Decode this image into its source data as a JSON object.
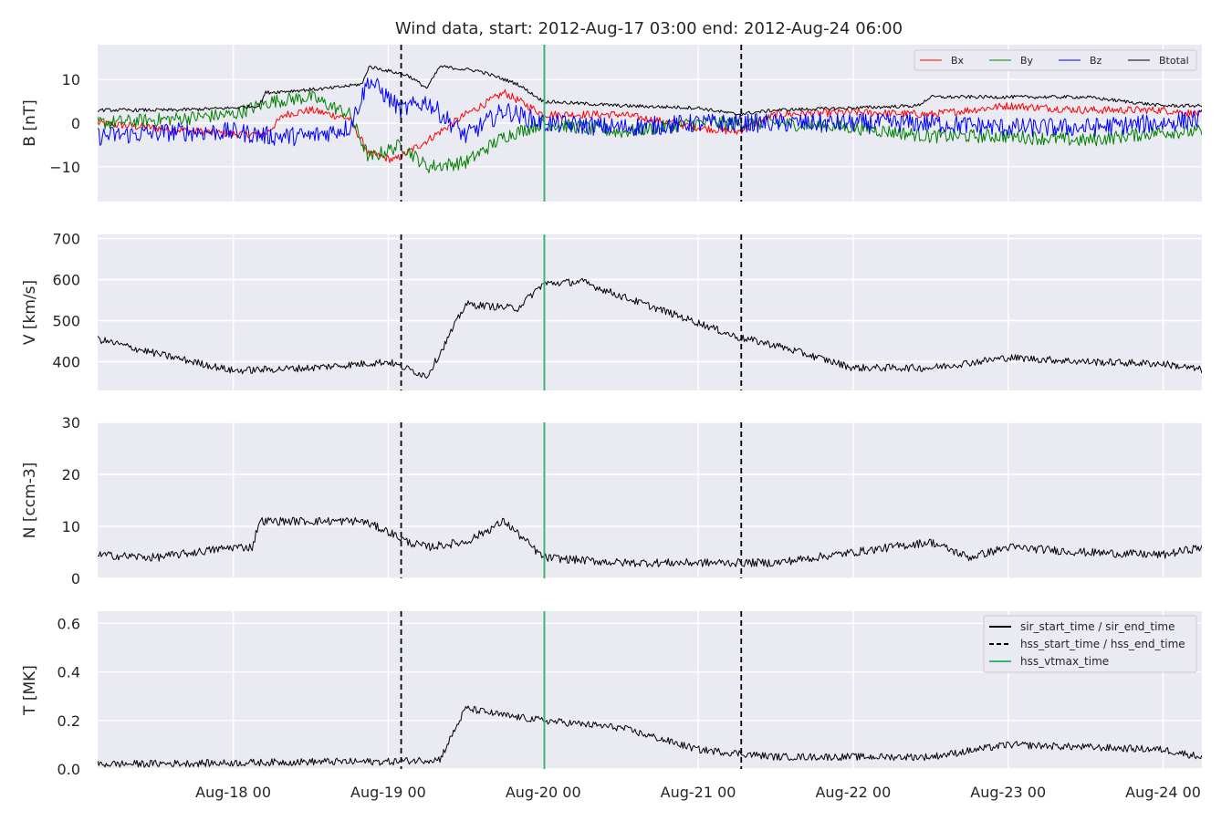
{
  "chart_data": {
    "type": "line",
    "title": "Wind data, start: 2012-Aug-17 03:00  end: 2012-Aug-24 06:00",
    "x_range": [
      "2012-08-17 03:00",
      "2012-08-24 06:00"
    ],
    "x_ticks": [
      {
        "t": "2012-08-18 00:00",
        "label": "Aug-18 00"
      },
      {
        "t": "2012-08-19 00:00",
        "label": "Aug-19 00"
      },
      {
        "t": "2012-08-20 00:00",
        "label": "Aug-20 00"
      },
      {
        "t": "2012-08-21 00:00",
        "label": "Aug-21 00"
      },
      {
        "t": "2012-08-22 00:00",
        "label": "Aug-22 00"
      },
      {
        "t": "2012-08-23 00:00",
        "label": "Aug-23 00"
      },
      {
        "t": "2012-08-24 00:00",
        "label": "Aug-24 00"
      }
    ],
    "vertical_markers": {
      "hss_start_time": "2012-08-19 02:00",
      "hss_end_time": "2012-08-21 06:40",
      "hss_vtmax_time": "2012-08-20 00:10"
    },
    "colors": {
      "Bx": "#ff0000",
      "By": "#008000",
      "Bz": "#0000ff",
      "Btotal": "#000000",
      "marker_vtmax": "#3cb371",
      "marker_hss": "#000000"
    },
    "legend_placement": "top-right",
    "grid": true,
    "panels": [
      {
        "id": "B",
        "ylabel": "B [nT]",
        "ylim": [
          -18,
          18
        ],
        "yticks": [
          -10,
          0,
          10
        ],
        "ytick_labels": [
          "−10",
          "0",
          "10"
        ],
        "legend": [
          "Bx",
          "By",
          "Bz",
          "Btotal"
        ],
        "series": [
          {
            "name": "Bx",
            "color": "#ff0000",
            "noise": 0.9,
            "points": [
              [
                "2012-08-17 03:00",
                0
              ],
              [
                "2012-08-17 15:00",
                -1.5
              ],
              [
                "2012-08-18 00:00",
                -2.5
              ],
              [
                "2012-08-18 05:00",
                -2.5
              ],
              [
                "2012-08-18 08:00",
                2
              ],
              [
                "2012-08-18 12:00",
                3
              ],
              [
                "2012-08-18 18:00",
                1
              ],
              [
                "2012-08-18 21:00",
                -7
              ],
              [
                "2012-08-19 01:00",
                -8.5
              ],
              [
                "2012-08-19 06:00",
                -4
              ],
              [
                "2012-08-19 12:00",
                2
              ],
              [
                "2012-08-19 18:00",
                7
              ],
              [
                "2012-08-20 00:00",
                2
              ],
              [
                "2012-08-20 12:00",
                2
              ],
              [
                "2012-08-21 00:00",
                -1
              ],
              [
                "2012-08-21 06:00",
                -2
              ],
              [
                "2012-08-21 12:00",
                2
              ],
              [
                "2012-08-22 00:00",
                2.5
              ],
              [
                "2012-08-22 12:00",
                2
              ],
              [
                "2012-08-23 00:00",
                4
              ],
              [
                "2012-08-23 12:00",
                3
              ],
              [
                "2012-08-24 00:00",
                3
              ],
              [
                "2012-08-24 06:00",
                2
              ]
            ]
          },
          {
            "name": "By",
            "color": "#008000",
            "noise": 1.6,
            "points": [
              [
                "2012-08-17 03:00",
                0
              ],
              [
                "2012-08-17 15:00",
                1
              ],
              [
                "2012-08-18 00:00",
                2
              ],
              [
                "2012-08-18 06:00",
                5
              ],
              [
                "2012-08-18 12:00",
                6
              ],
              [
                "2012-08-18 18:00",
                2
              ],
              [
                "2012-08-18 21:00",
                -8
              ],
              [
                "2012-08-19 02:00",
                -5
              ],
              [
                "2012-08-19 06:00",
                -10
              ],
              [
                "2012-08-19 12:00",
                -9
              ],
              [
                "2012-08-19 18:00",
                -3
              ],
              [
                "2012-08-20 00:00",
                0
              ],
              [
                "2012-08-20 12:00",
                -2
              ],
              [
                "2012-08-21 00:00",
                0
              ],
              [
                "2012-08-21 12:00",
                0
              ],
              [
                "2012-08-22 00:00",
                -1
              ],
              [
                "2012-08-22 12:00",
                -3
              ],
              [
                "2012-08-23 00:00",
                -3
              ],
              [
                "2012-08-23 12:00",
                -4
              ],
              [
                "2012-08-24 00:00",
                -2
              ],
              [
                "2012-08-24 06:00",
                -2
              ]
            ]
          },
          {
            "name": "Bz",
            "color": "#0000ff",
            "noise": 2.2,
            "points": [
              [
                "2012-08-17 03:00",
                -3
              ],
              [
                "2012-08-17 15:00",
                -2
              ],
              [
                "2012-08-18 00:00",
                -2
              ],
              [
                "2012-08-18 06:00",
                -3
              ],
              [
                "2012-08-18 12:00",
                -3
              ],
              [
                "2012-08-18 18:00",
                -1
              ],
              [
                "2012-08-18 21:00",
                10
              ],
              [
                "2012-08-19 02:00",
                3
              ],
              [
                "2012-08-19 06:00",
                5
              ],
              [
                "2012-08-19 12:00",
                -3
              ],
              [
                "2012-08-19 18:00",
                3
              ],
              [
                "2012-08-20 00:00",
                0
              ],
              [
                "2012-08-20 12:00",
                -1
              ],
              [
                "2012-08-21 00:00",
                0
              ],
              [
                "2012-08-21 12:00",
                0
              ],
              [
                "2012-08-22 00:00",
                0
              ],
              [
                "2012-08-22 12:00",
                0
              ],
              [
                "2012-08-23 00:00",
                -1
              ],
              [
                "2012-08-23 12:00",
                -1
              ],
              [
                "2012-08-24 00:00",
                0
              ],
              [
                "2012-08-24 06:00",
                1
              ]
            ]
          },
          {
            "name": "Btotal",
            "color": "#000000",
            "noise": 0.4,
            "points": [
              [
                "2012-08-17 03:00",
                3
              ],
              [
                "2012-08-17 15:00",
                3
              ],
              [
                "2012-08-18 00:00",
                3.5
              ],
              [
                "2012-08-18 04:00",
                4
              ],
              [
                "2012-08-18 05:00",
                7
              ],
              [
                "2012-08-18 15:00",
                8
              ],
              [
                "2012-08-18 20:00",
                9
              ],
              [
                "2012-08-18 21:00",
                13
              ],
              [
                "2012-08-19 03:00",
                11
              ],
              [
                "2012-08-19 06:00",
                8
              ],
              [
                "2012-08-19 08:00",
                13
              ],
              [
                "2012-08-19 14:00",
                12
              ],
              [
                "2012-08-19 20:00",
                9
              ],
              [
                "2012-08-20 00:00",
                5
              ],
              [
                "2012-08-20 12:00",
                4
              ],
              [
                "2012-08-21 00:00",
                3.5
              ],
              [
                "2012-08-21 06:00",
                2
              ],
              [
                "2012-08-21 12:00",
                3
              ],
              [
                "2012-08-22 00:00",
                3.5
              ],
              [
                "2012-08-22 10:00",
                4
              ],
              [
                "2012-08-22 12:00",
                6
              ],
              [
                "2012-08-23 00:00",
                6
              ],
              [
                "2012-08-23 12:00",
                6
              ],
              [
                "2012-08-24 00:00",
                4
              ],
              [
                "2012-08-24 06:00",
                4
              ]
            ]
          }
        ]
      },
      {
        "id": "V",
        "ylabel": "V [km/s]",
        "ylim": [
          330,
          710
        ],
        "yticks": [
          400,
          500,
          600,
          700
        ],
        "ytick_labels": [
          "400",
          "500",
          "600",
          "700"
        ],
        "series": [
          {
            "name": "V",
            "color": "#000000",
            "noise": 9,
            "points": [
              [
                "2012-08-17 03:00",
                455
              ],
              [
                "2012-08-17 12:00",
                420
              ],
              [
                "2012-08-18 00:00",
                378
              ],
              [
                "2012-08-18 12:00",
                385
              ],
              [
                "2012-08-19 00:00",
                400
              ],
              [
                "2012-08-19 06:00",
                365
              ],
              [
                "2012-08-19 08:00",
                420
              ],
              [
                "2012-08-19 12:00",
                540
              ],
              [
                "2012-08-19 20:00",
                530
              ],
              [
                "2012-08-20 00:00",
                590
              ],
              [
                "2012-08-20 06:00",
                595
              ],
              [
                "2012-08-20 12:00",
                560
              ],
              [
                "2012-08-21 00:00",
                495
              ],
              [
                "2012-08-21 06:00",
                460
              ],
              [
                "2012-08-21 12:00",
                440
              ],
              [
                "2012-08-22 00:00",
                385
              ],
              [
                "2012-08-22 12:00",
                385
              ],
              [
                "2012-08-23 00:00",
                410
              ],
              [
                "2012-08-23 12:00",
                400
              ],
              [
                "2012-08-24 00:00",
                395
              ],
              [
                "2012-08-24 06:00",
                380
              ]
            ]
          }
        ]
      },
      {
        "id": "N",
        "ylabel": "N [ccm-3]",
        "ylim": [
          0,
          30
        ],
        "yticks": [
          0,
          10,
          20,
          30
        ],
        "ytick_labels": [
          "0",
          "10",
          "20",
          "30"
        ],
        "series": [
          {
            "name": "N",
            "color": "#000000",
            "noise": 0.8,
            "points": [
              [
                "2012-08-17 03:00",
                4.5
              ],
              [
                "2012-08-17 12:00",
                4
              ],
              [
                "2012-08-18 00:00",
                6
              ],
              [
                "2012-08-18 03:00",
                6
              ],
              [
                "2012-08-18 04:00",
                11
              ],
              [
                "2012-08-18 20:00",
                11
              ],
              [
                "2012-08-19 00:00",
                9
              ],
              [
                "2012-08-19 03:00",
                7
              ],
              [
                "2012-08-19 06:00",
                6
              ],
              [
                "2012-08-19 12:00",
                7
              ],
              [
                "2012-08-19 18:00",
                11
              ],
              [
                "2012-08-20 00:00",
                4
              ],
              [
                "2012-08-20 12:00",
                3
              ],
              [
                "2012-08-21 00:00",
                3
              ],
              [
                "2012-08-21 12:00",
                3
              ],
              [
                "2012-08-22 00:00",
                5
              ],
              [
                "2012-08-22 06:00",
                6
              ],
              [
                "2012-08-22 12:00",
                7
              ],
              [
                "2012-08-22 18:00",
                4
              ],
              [
                "2012-08-23 00:00",
                6
              ],
              [
                "2012-08-23 12:00",
                5
              ],
              [
                "2012-08-24 00:00",
                4.5
              ],
              [
                "2012-08-24 06:00",
                6
              ]
            ]
          }
        ]
      },
      {
        "id": "T",
        "ylabel": "T [MK]",
        "ylim": [
          0,
          0.65
        ],
        "yticks": [
          0,
          0.2,
          0.4,
          0.6
        ],
        "ytick_labels": [
          "0.0",
          "0.2",
          "0.4",
          "0.6"
        ],
        "legend": [
          "sir_start_time / sir_end_time",
          "hss_start_time / hss_end_time",
          "hss_vtmax_time"
        ],
        "series": [
          {
            "name": "T",
            "color": "#000000",
            "noise": 0.015,
            "points": [
              [
                "2012-08-17 03:00",
                0.02
              ],
              [
                "2012-08-18 00:00",
                0.025
              ],
              [
                "2012-08-18 12:00",
                0.03
              ],
              [
                "2012-08-19 00:00",
                0.03
              ],
              [
                "2012-08-19 08:00",
                0.04
              ],
              [
                "2012-08-19 12:00",
                0.25
              ],
              [
                "2012-08-19 18:00",
                0.22
              ],
              [
                "2012-08-20 00:00",
                0.2
              ],
              [
                "2012-08-20 12:00",
                0.17
              ],
              [
                "2012-08-21 00:00",
                0.08
              ],
              [
                "2012-08-21 12:00",
                0.05
              ],
              [
                "2012-08-22 00:00",
                0.05
              ],
              [
                "2012-08-22 12:00",
                0.05
              ],
              [
                "2012-08-23 00:00",
                0.1
              ],
              [
                "2012-08-23 12:00",
                0.09
              ],
              [
                "2012-08-24 00:00",
                0.08
              ],
              [
                "2012-08-24 06:00",
                0.05
              ]
            ]
          }
        ]
      }
    ]
  }
}
